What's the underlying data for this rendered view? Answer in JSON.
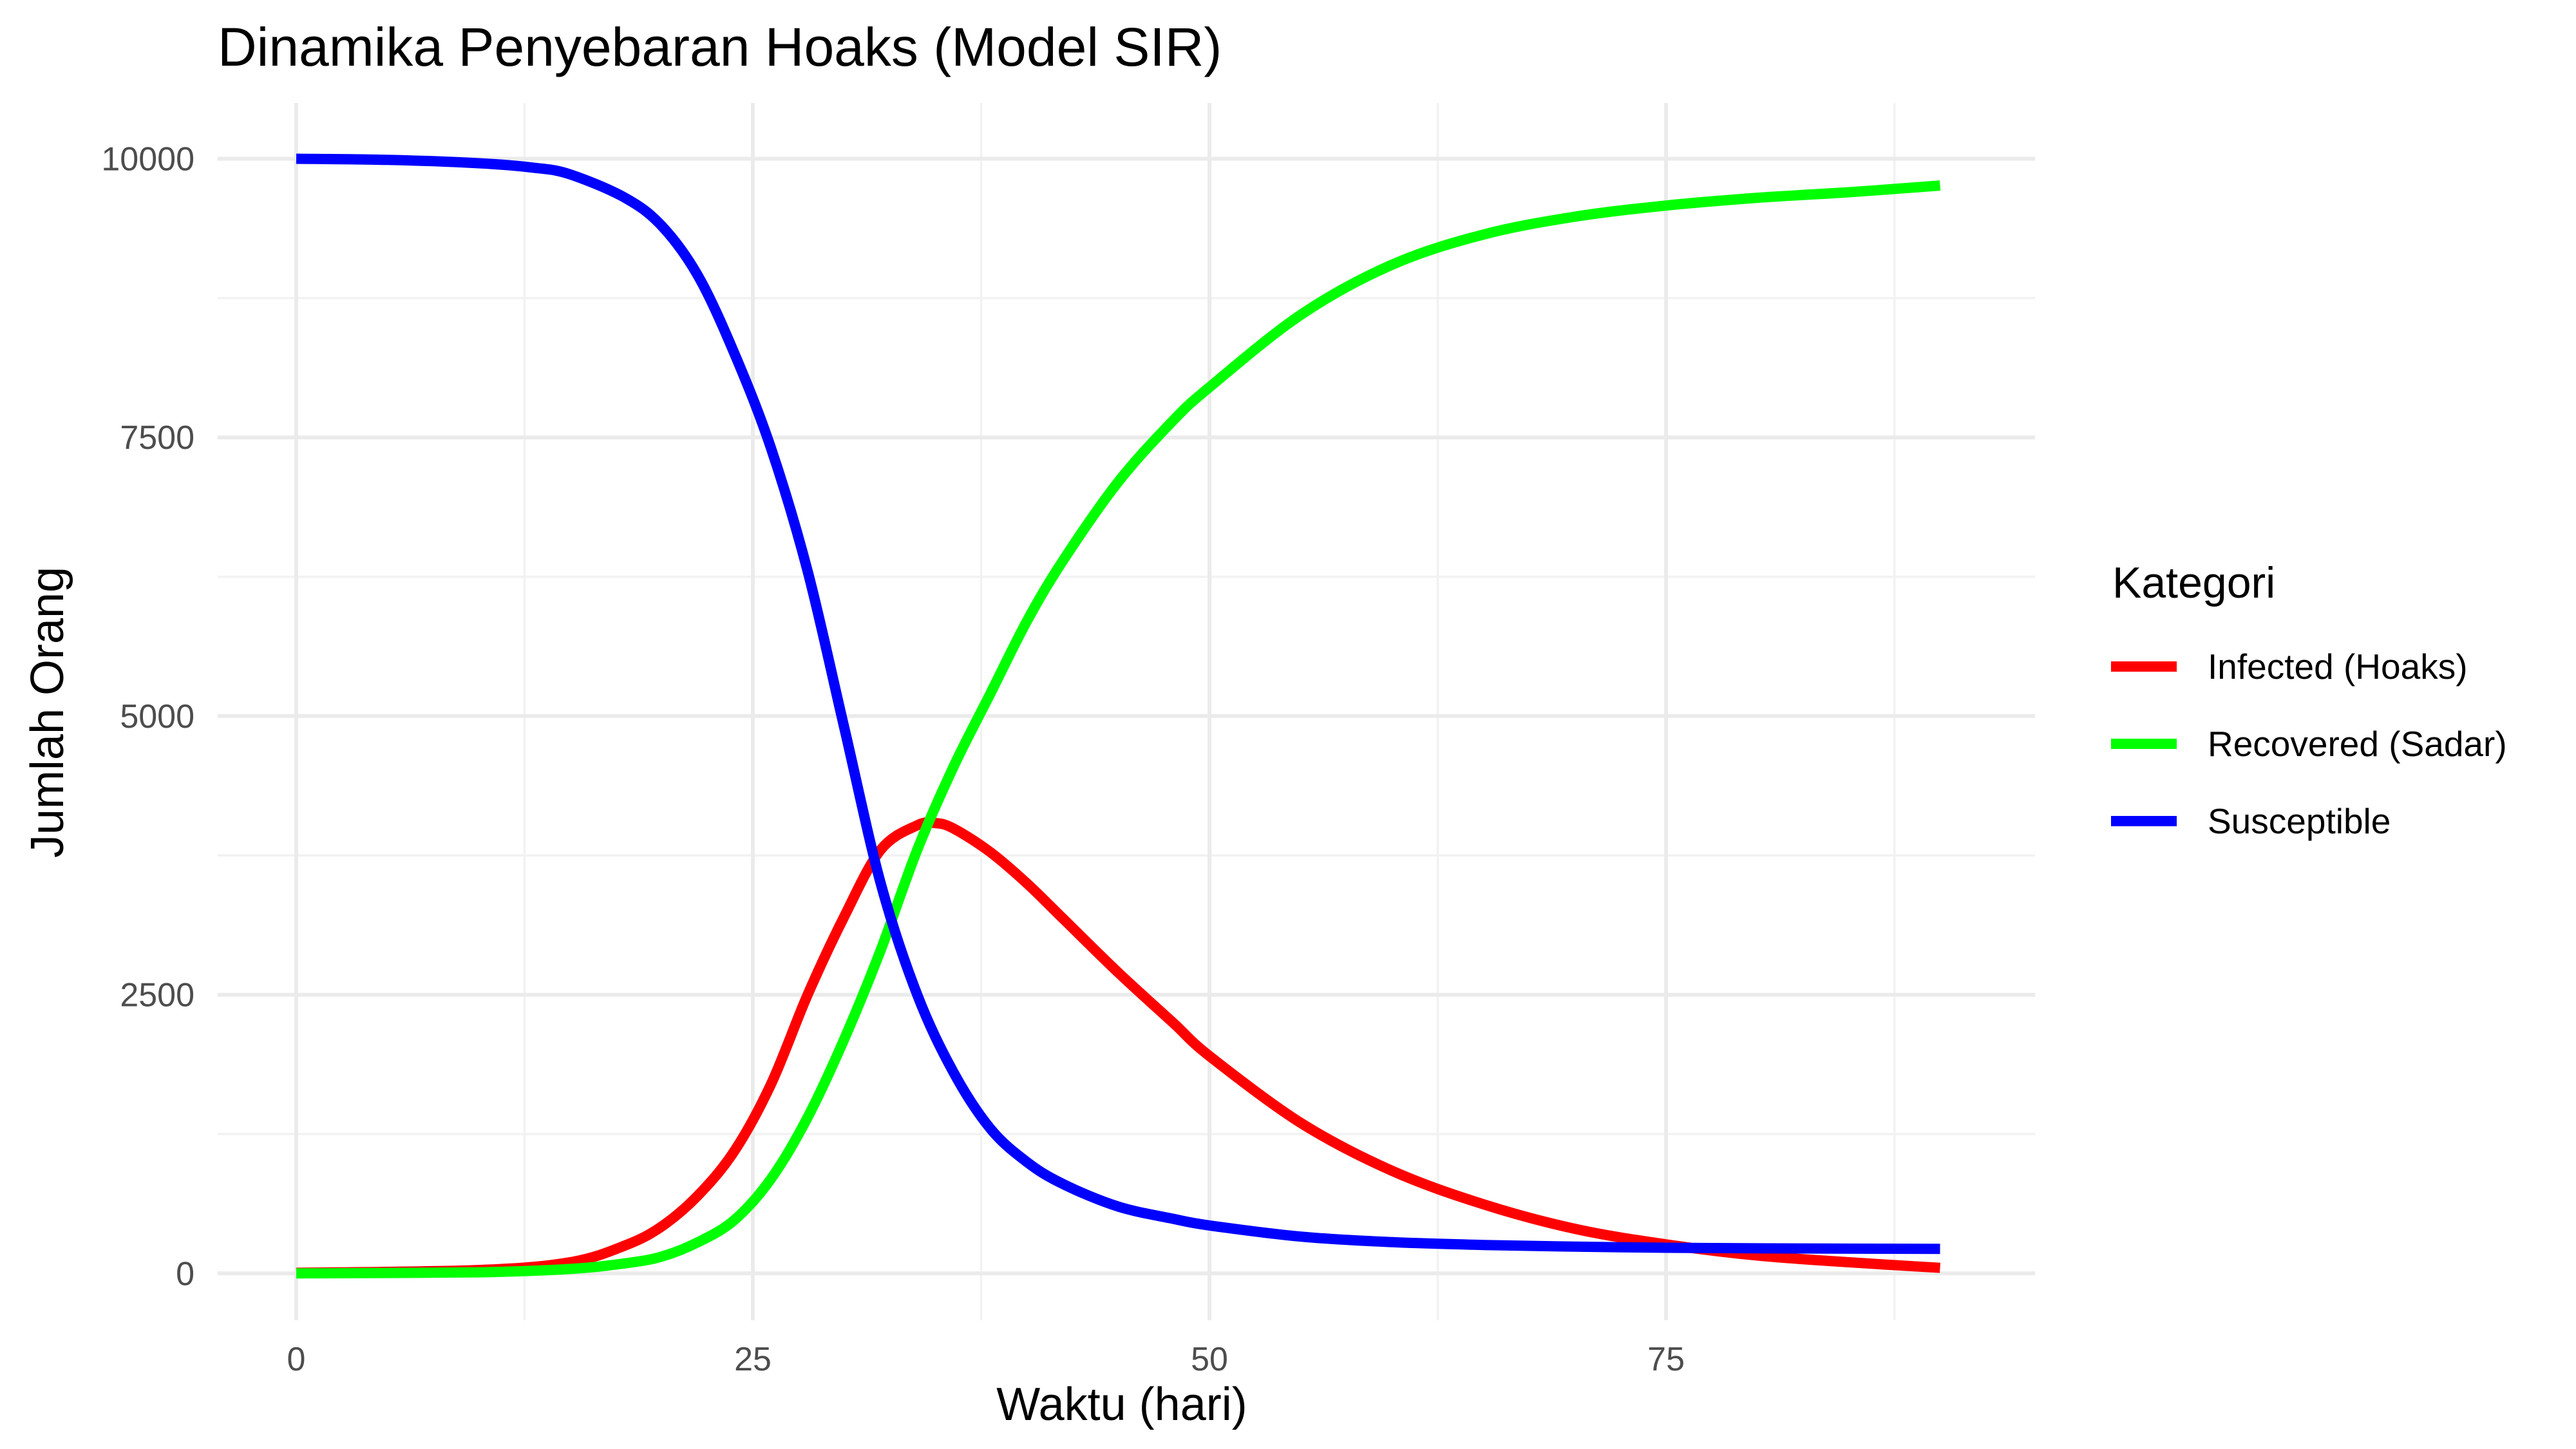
{
  "chart_data": {
    "type": "line",
    "title": "Dinamika Penyebaran Hoaks (Model SIR)",
    "xlabel": "Waktu (hari)",
    "ylabel": "Jumlah Orang",
    "xlim": [
      -4.3,
      95.2
    ],
    "ylim": [
      -420,
      10500
    ],
    "x_ticks": [
      0,
      25,
      50,
      75
    ],
    "x_tick_labels": [
      "0",
      "25",
      "50",
      "75"
    ],
    "y_ticks": [
      0,
      2500,
      5000,
      7500,
      10000
    ],
    "y_tick_labels": [
      "0",
      "2500",
      "5000",
      "7500",
      "10000"
    ],
    "grid": true,
    "legend": {
      "title": "Kategori",
      "position": "right"
    },
    "series": [
      {
        "name": "Infected (Hoaks)",
        "color": "#ff0000",
        "x": [
          0,
          10,
          15,
          18,
          20,
          22,
          24,
          26,
          28,
          30,
          32,
          34,
          35,
          36,
          38,
          40,
          42,
          45,
          48,
          50,
          55,
          60,
          65,
          70,
          75,
          80,
          85,
          90
        ],
        "y": [
          5,
          30,
          100,
          250,
          420,
          700,
          1100,
          1700,
          2500,
          3200,
          3800,
          4020,
          4040,
          3990,
          3780,
          3500,
          3180,
          2700,
          2250,
          1950,
          1350,
          920,
          620,
          400,
          260,
          160,
          100,
          50
        ]
      },
      {
        "name": "Recovered (Sadar)",
        "color": "#00ff00",
        "x": [
          0,
          10,
          15,
          18,
          20,
          22,
          24,
          26,
          28,
          30,
          32,
          34,
          36,
          38,
          40,
          42,
          45,
          48,
          50,
          55,
          60,
          65,
          70,
          75,
          80,
          85,
          90
        ],
        "y": [
          0,
          10,
          40,
          90,
          150,
          280,
          480,
          850,
          1400,
          2100,
          2900,
          3800,
          4550,
          5200,
          5850,
          6400,
          7100,
          7650,
          7950,
          8600,
          9050,
          9320,
          9480,
          9580,
          9650,
          9700,
          9760
        ]
      },
      {
        "name": "Susceptible",
        "color": "#0000ff",
        "x": [
          0,
          5,
          10,
          13,
          15,
          18,
          20,
          22,
          24,
          26,
          28,
          30,
          32,
          34,
          36,
          38,
          40,
          42,
          45,
          48,
          50,
          55,
          60,
          65,
          70,
          75,
          80,
          85,
          90
        ],
        "y": [
          10000,
          9990,
          9960,
          9920,
          9860,
          9650,
          9400,
          8950,
          8250,
          7400,
          6300,
          4900,
          3500,
          2500,
          1800,
          1300,
          1000,
          800,
          600,
          490,
          430,
          330,
          280,
          255,
          240,
          230,
          225,
          222,
          220
        ]
      }
    ]
  }
}
